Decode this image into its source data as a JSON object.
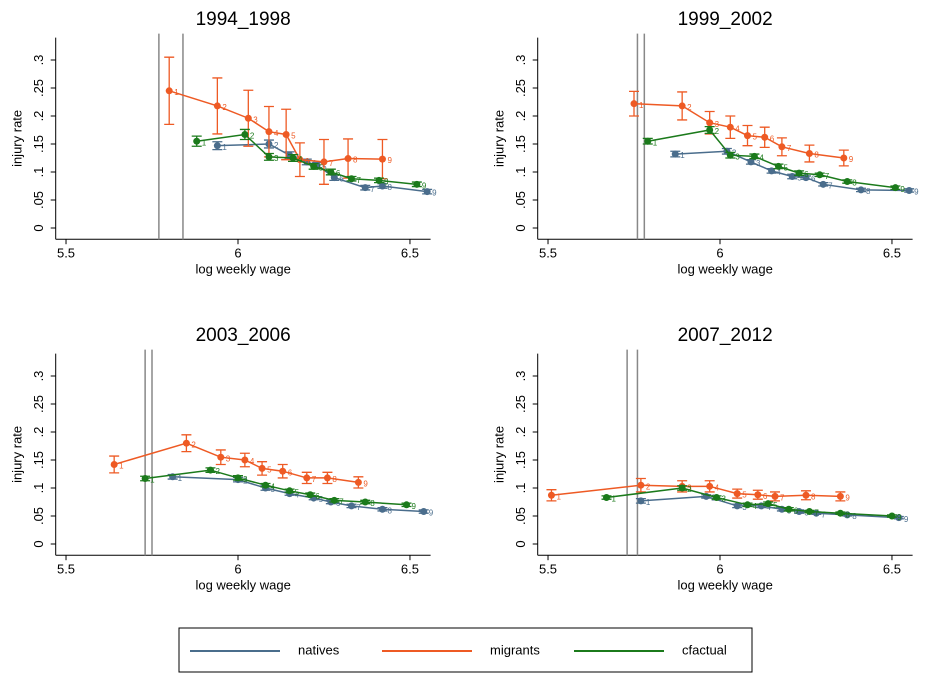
{
  "chart_data": [
    {
      "type": "line",
      "title": "1994_1998",
      "xlabel": "log weekly wage",
      "ylabel": "injury rate",
      "xlim": [
        5.47,
        6.56
      ],
      "ylim": [
        -0.02,
        0.34
      ],
      "xticks": [
        5.5,
        6,
        6.5
      ],
      "yticks": [
        0,
        {
          "value": 0.05,
          "label": ".05"
        },
        {
          "value": 0.1,
          "label": ".1"
        },
        {
          "value": 0.15,
          "label": ".15"
        },
        {
          "value": 0.2,
          "label": ".2"
        },
        {
          "value": 0.25,
          "label": ".25"
        },
        {
          "value": 0.3,
          "label": ".3"
        }
      ],
      "vlines": [
        5.77,
        5.84
      ],
      "series": [
        {
          "name": "natives",
          "color": "#4a6d8c",
          "x": [
            5.94,
            6.09,
            6.15,
            6.2,
            6.23,
            6.28,
            6.37,
            6.42,
            6.55
          ],
          "values": [
            0.147,
            0.15,
            0.13,
            0.118,
            0.112,
            0.09,
            0.072,
            0.075,
            0.065
          ],
          "errors": [
            0.007,
            0.007,
            0.006,
            0.005,
            0.005,
            0.005,
            0.004,
            0.004,
            0.004
          ],
          "point_labels": [
            "1",
            "2",
            "3",
            "4",
            "5",
            "6",
            "7",
            "8",
            "9"
          ]
        },
        {
          "name": "migrants",
          "color": "#ee5a24",
          "x": [
            5.8,
            5.94,
            6.03,
            6.09,
            6.14,
            6.18,
            6.25,
            6.32,
            6.42
          ],
          "values": [
            0.245,
            0.218,
            0.196,
            0.172,
            0.167,
            0.122,
            0.118,
            0.124,
            0.123
          ],
          "errors": [
            0.06,
            0.05,
            0.05,
            0.045,
            0.045,
            0.03,
            0.04,
            0.035,
            0.035
          ],
          "point_labels": [
            "1",
            "2",
            "3",
            "4",
            "5",
            "6",
            "7",
            "8",
            "9"
          ]
        },
        {
          "name": "cfactual",
          "color": "#1b7a1b",
          "x": [
            5.88,
            6.02,
            6.09,
            6.16,
            6.22,
            6.27,
            6.33,
            6.41,
            6.52
          ],
          "values": [
            0.155,
            0.167,
            0.127,
            0.125,
            0.11,
            0.1,
            0.088,
            0.085,
            0.078
          ],
          "errors": [
            0.009,
            0.009,
            0.006,
            0.006,
            0.005,
            0.005,
            0.004,
            0.004,
            0.004
          ],
          "point_labels": [
            "1",
            "2",
            "3",
            "4",
            "5",
            "6",
            "7",
            "8",
            "9"
          ]
        }
      ]
    },
    {
      "type": "line",
      "title": "1999_2002",
      "xlabel": "log weekly wage",
      "ylabel": "injury rate",
      "xlim": [
        5.47,
        6.56
      ],
      "ylim": [
        -0.02,
        0.34
      ],
      "xticks": [
        5.5,
        6,
        6.5
      ],
      "yticks": [
        0,
        {
          "value": 0.05,
          "label": ".05"
        },
        {
          "value": 0.1,
          "label": ".1"
        },
        {
          "value": 0.15,
          "label": ".15"
        },
        {
          "value": 0.2,
          "label": ".2"
        },
        {
          "value": 0.25,
          "label": ".25"
        },
        {
          "value": 0.3,
          "label": ".3"
        }
      ],
      "vlines": [
        5.76,
        5.78
      ],
      "series": [
        {
          "name": "natives",
          "color": "#4a6d8c",
          "x": [
            5.87,
            6.02,
            6.09,
            6.15,
            6.21,
            6.25,
            6.3,
            6.41,
            6.55
          ],
          "values": [
            0.132,
            0.137,
            0.118,
            0.102,
            0.092,
            0.09,
            0.078,
            0.068,
            0.067
          ],
          "errors": [
            0.005,
            0.005,
            0.004,
            0.004,
            0.004,
            0.003,
            0.003,
            0.003,
            0.003
          ],
          "point_labels": [
            "1",
            "2",
            "3",
            "4",
            "5",
            "6",
            "7",
            "8",
            "9"
          ]
        },
        {
          "name": "migrants",
          "color": "#ee5a24",
          "x": [
            5.75,
            5.89,
            5.97,
            6.03,
            6.08,
            6.13,
            6.18,
            6.26,
            6.36
          ],
          "values": [
            0.222,
            0.218,
            0.188,
            0.18,
            0.165,
            0.162,
            0.145,
            0.133,
            0.125
          ],
          "errors": [
            0.022,
            0.025,
            0.02,
            0.02,
            0.018,
            0.018,
            0.016,
            0.015,
            0.014
          ],
          "point_labels": [
            "1",
            "2",
            "3",
            "4",
            "5",
            "6",
            "7",
            "8",
            "9"
          ]
        },
        {
          "name": "cfactual",
          "color": "#1b7a1b",
          "x": [
            5.79,
            5.97,
            6.03,
            6.1,
            6.17,
            6.23,
            6.29,
            6.37,
            6.51
          ],
          "values": [
            0.155,
            0.175,
            0.13,
            0.128,
            0.11,
            0.098,
            0.095,
            0.083,
            0.072
          ],
          "errors": [
            0.005,
            0.006,
            0.005,
            0.004,
            0.004,
            0.004,
            0.003,
            0.003,
            0.003
          ],
          "point_labels": [
            "1",
            "2",
            "3",
            "4",
            "5",
            "6",
            "7",
            "8",
            "9"
          ]
        }
      ]
    },
    {
      "type": "line",
      "title": "2003_2006",
      "xlabel": "log weekly wage",
      "ylabel": "injury rate",
      "xlim": [
        5.47,
        6.56
      ],
      "ylim": [
        -0.02,
        0.34
      ],
      "xticks": [
        5.5,
        6,
        6.5
      ],
      "yticks": [
        0,
        {
          "value": 0.05,
          "label": ".05"
        },
        {
          "value": 0.1,
          "label": ".1"
        },
        {
          "value": 0.15,
          "label": ".15"
        },
        {
          "value": 0.2,
          "label": ".2"
        },
        {
          "value": 0.25,
          "label": ".25"
        },
        {
          "value": 0.3,
          "label": ".3"
        }
      ],
      "vlines": [
        5.73,
        5.75
      ],
      "series": [
        {
          "name": "natives",
          "color": "#4a6d8c",
          "x": [
            5.81,
            6.0,
            6.08,
            6.15,
            6.22,
            6.27,
            6.33,
            6.42,
            6.54
          ],
          "values": [
            0.12,
            0.115,
            0.1,
            0.09,
            0.082,
            0.075,
            0.068,
            0.062,
            0.058
          ],
          "errors": [
            0.004,
            0.004,
            0.004,
            0.003,
            0.003,
            0.003,
            0.003,
            0.003,
            0.003
          ],
          "point_labels": [
            "1",
            "2",
            "3",
            "4",
            "5",
            "6",
            "7",
            "8",
            "9"
          ]
        },
        {
          "name": "migrants",
          "color": "#ee5a24",
          "x": [
            5.64,
            5.85,
            5.95,
            6.02,
            6.07,
            6.13,
            6.2,
            6.26,
            6.35
          ],
          "values": [
            0.142,
            0.18,
            0.155,
            0.15,
            0.135,
            0.13,
            0.118,
            0.118,
            0.11
          ],
          "errors": [
            0.015,
            0.015,
            0.013,
            0.012,
            0.012,
            0.012,
            0.01,
            0.01,
            0.01
          ],
          "point_labels": [
            "1",
            "2",
            "3",
            "4",
            "5",
            "6",
            "7",
            "8",
            "9"
          ]
        },
        {
          "name": "cfactual",
          "color": "#1b7a1b",
          "x": [
            5.73,
            5.92,
            6.0,
            6.08,
            6.15,
            6.21,
            6.28,
            6.37,
            6.49
          ],
          "values": [
            0.117,
            0.132,
            0.118,
            0.105,
            0.095,
            0.088,
            0.078,
            0.075,
            0.07
          ],
          "errors": [
            0.004,
            0.004,
            0.004,
            0.003,
            0.003,
            0.003,
            0.003,
            0.003,
            0.003
          ],
          "point_labels": [
            "1",
            "2",
            "3",
            "4",
            "5",
            "6",
            "7",
            "8",
            "9"
          ]
        }
      ]
    },
    {
      "type": "line",
      "title": "2007_2012",
      "xlabel": "log weekly wage",
      "ylabel": "injury rate",
      "xlim": [
        5.47,
        6.56
      ],
      "ylim": [
        -0.02,
        0.34
      ],
      "xticks": [
        5.5,
        6,
        6.5
      ],
      "yticks": [
        0,
        {
          "value": 0.05,
          "label": ".05"
        },
        {
          "value": 0.1,
          "label": ".1"
        },
        {
          "value": 0.15,
          "label": ".15"
        },
        {
          "value": 0.2,
          "label": ".2"
        },
        {
          "value": 0.25,
          "label": ".25"
        },
        {
          "value": 0.3,
          "label": ".3"
        }
      ],
      "vlines": [
        5.73,
        5.76
      ],
      "series": [
        {
          "name": "natives",
          "color": "#4a6d8c",
          "x": [
            5.77,
            5.96,
            6.05,
            6.12,
            6.18,
            6.23,
            6.28,
            6.37,
            6.52
          ],
          "values": [
            0.077,
            0.085,
            0.068,
            0.068,
            0.062,
            0.058,
            0.055,
            0.052,
            0.047
          ],
          "errors": [
            0.004,
            0.003,
            0.003,
            0.003,
            0.003,
            0.003,
            0.002,
            0.002,
            0.002
          ],
          "point_labels": [
            "1",
            "2",
            "3",
            "4",
            "5",
            "6",
            "7",
            "8",
            "9"
          ]
        },
        {
          "name": "migrants",
          "color": "#ee5a24",
          "x": [
            5.51,
            5.77,
            5.89,
            5.97,
            6.05,
            6.11,
            6.16,
            6.25,
            6.35
          ],
          "values": [
            0.087,
            0.105,
            0.103,
            0.103,
            0.09,
            0.088,
            0.085,
            0.087,
            0.085
          ],
          "errors": [
            0.01,
            0.012,
            0.01,
            0.01,
            0.008,
            0.008,
            0.008,
            0.008,
            0.008
          ],
          "point_labels": [
            "1",
            "2",
            "3",
            "4",
            "5",
            "6",
            "7",
            "8",
            "9"
          ]
        },
        {
          "name": "cfactual",
          "color": "#1b7a1b",
          "x": [
            5.67,
            5.89,
            5.99,
            6.08,
            6.14,
            6.2,
            6.26,
            6.35,
            6.5
          ],
          "values": [
            0.083,
            0.1,
            0.083,
            0.07,
            0.072,
            0.062,
            0.058,
            0.055,
            0.05
          ],
          "errors": [
            0.003,
            0.004,
            0.003,
            0.003,
            0.003,
            0.003,
            0.002,
            0.002,
            0.002
          ],
          "point_labels": [
            "1",
            "2",
            "3",
            "4",
            "5",
            "6",
            "7",
            "8",
            "9"
          ]
        }
      ]
    }
  ]
}
